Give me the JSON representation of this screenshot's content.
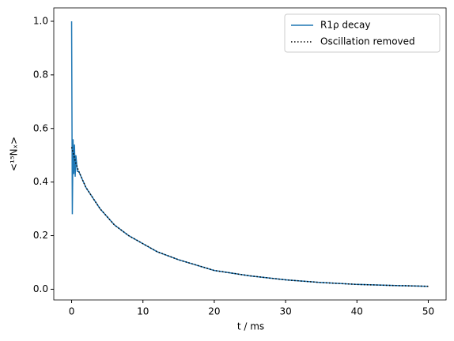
{
  "chart_data": {
    "type": "line",
    "xlabel": "t / ms",
    "ylabel": "<¹⁵Nₓ>",
    "x": [
      0,
      0.1,
      0.2,
      0.3,
      0.4,
      0.5,
      0.6,
      0.8,
      1,
      1.5,
      2,
      3,
      4,
      5,
      6,
      8,
      10,
      12,
      15,
      20,
      25,
      30,
      35,
      40,
      45,
      50
    ],
    "series": [
      {
        "name": "R1ρ decay",
        "color": "#1f77b4",
        "style": "solid",
        "values": [
          1.0,
          0.28,
          0.56,
          0.43,
          0.54,
          0.42,
          0.5,
          0.44,
          0.44,
          0.41,
          0.38,
          0.34,
          0.3,
          0.27,
          0.24,
          0.2,
          0.17,
          0.14,
          0.11,
          0.07,
          0.05,
          0.035,
          0.025,
          0.018,
          0.014,
          0.011
        ]
      },
      {
        "name": "Oscillation removed",
        "color": "#000000",
        "style": "dotted",
        "values": [
          0.53,
          0.52,
          0.51,
          0.5,
          0.49,
          0.48,
          0.47,
          0.455,
          0.44,
          0.41,
          0.38,
          0.34,
          0.3,
          0.27,
          0.24,
          0.2,
          0.17,
          0.14,
          0.11,
          0.07,
          0.05,
          0.035,
          0.025,
          0.018,
          0.014,
          0.011
        ]
      }
    ],
    "xlim": [
      -2.5,
      52.5
    ],
    "xticks": [
      0,
      10,
      20,
      30,
      40,
      50
    ],
    "ylim": [
      -0.04,
      1.05
    ],
    "yticks": [
      {
        "value": 0,
        "label": "0.0"
      },
      0.2,
      0.4,
      0.6,
      0.8,
      {
        "value": 1,
        "label": "1.0"
      }
    ],
    "grid": false,
    "legend": "upper right"
  }
}
